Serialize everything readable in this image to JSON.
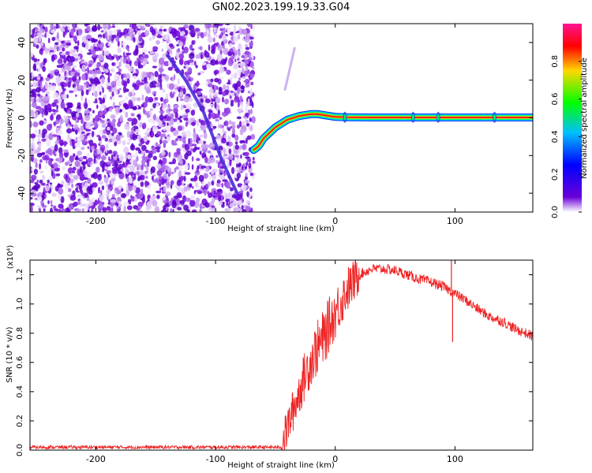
{
  "title": "GN02.2023.199.19.33.G04",
  "chart_data": [
    {
      "type": "heatmap",
      "xlabel": "Height of straight line (km)",
      "ylabel": "Frequency (Hz)",
      "xlim": [
        -255,
        165
      ],
      "ylim": [
        -50,
        50
      ],
      "xticks": [
        -200,
        -100,
        0,
        100
      ],
      "yticks": [
        -40,
        -20,
        0,
        20,
        40
      ],
      "colorbar": {
        "label": "Normalized spectral amplitude",
        "range": [
          0,
          1
        ],
        "ticks": [
          "0.0",
          "0.2",
          "0.4",
          "0.6",
          "0.8"
        ],
        "colors": [
          "#ffffff",
          "#6a00d8",
          "#0000ff",
          "#00bfff",
          "#00ff00",
          "#ffd700",
          "#ff0000",
          "#ff1493"
        ]
      },
      "noise_region": {
        "x": [
          -255,
          -68
        ],
        "y": [
          -50,
          50
        ]
      },
      "series": [
        {
          "kind": "main-trace",
          "x": [
            -68,
            -64,
            -60,
            -55,
            -50,
            -45,
            -40,
            -35,
            -30,
            -25,
            -20,
            -15,
            -10,
            -5,
            0,
            10,
            30,
            60,
            100,
            130,
            165
          ],
          "y": [
            -17,
            -15,
            -11,
            -8,
            -5,
            -3,
            -1,
            0,
            1,
            1.5,
            2,
            2,
            1.5,
            1,
            0.5,
            0.3,
            0.2,
            0.2,
            0.2,
            0.2,
            0.2
          ]
        },
        {
          "kind": "faint-trace-descending",
          "x": [
            -140,
            -125,
            -110,
            -95,
            -82
          ],
          "y": [
            33,
            20,
            3,
            -22,
            -40
          ]
        },
        {
          "kind": "faint-trace-ascending",
          "x": [
            -42,
            -38,
            -34
          ],
          "y": [
            15,
            26,
            37
          ]
        }
      ]
    },
    {
      "type": "line",
      "xlabel": "Height of straight line (km)",
      "ylabel": "SNR (10 * v/v)",
      "ylabel_multiplier": "(x10⁴)",
      "xlim": [
        -255,
        165
      ],
      "ylim": [
        0,
        1.3
      ],
      "xticks": [
        -200,
        -100,
        0,
        100
      ],
      "yticks": [
        "0.0",
        "0.2",
        "0.4",
        "0.6",
        "0.8",
        "1.0",
        "1.2"
      ],
      "color": "#ee2222",
      "x": [
        -255,
        -45,
        -43,
        -40,
        -35,
        -30,
        -25,
        -20,
        -15,
        -10,
        -5,
        0,
        5,
        10,
        20,
        30,
        40,
        50,
        60,
        70,
        80,
        90,
        100,
        110,
        120,
        130,
        140,
        150,
        165
      ],
      "y": [
        0.02,
        0.02,
        0.08,
        0.15,
        0.28,
        0.4,
        0.52,
        0.62,
        0.7,
        0.76,
        0.86,
        0.94,
        1.02,
        1.1,
        1.2,
        1.24,
        1.24,
        1.23,
        1.2,
        1.17,
        1.15,
        1.12,
        1.07,
        1.02,
        0.96,
        0.91,
        0.88,
        0.83,
        0.78
      ],
      "spikes": [
        {
          "x": 97,
          "y": 1.3
        },
        {
          "x": 98,
          "y": 0.74
        }
      ]
    }
  ]
}
